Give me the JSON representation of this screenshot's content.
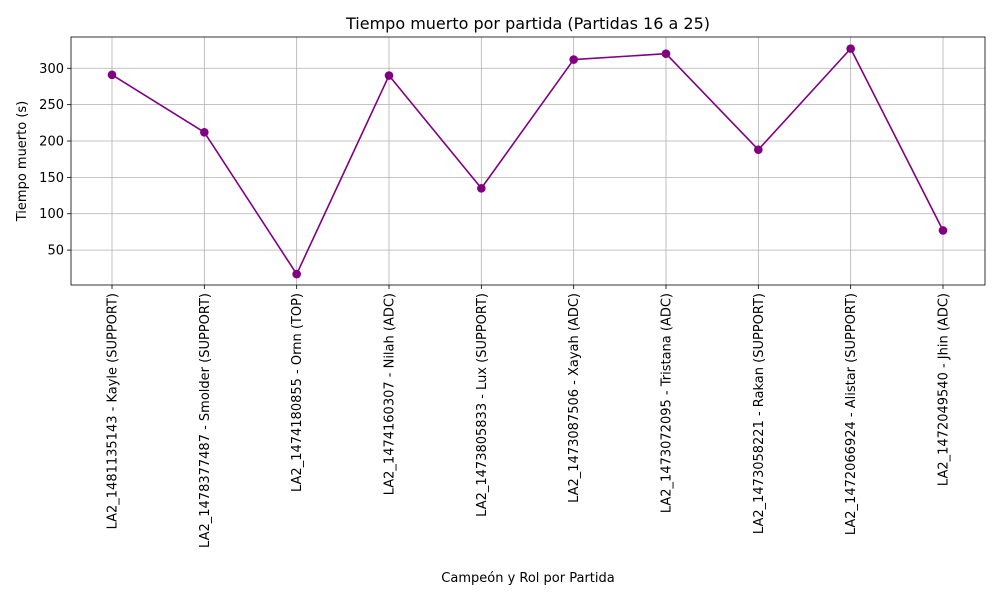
{
  "chart_data": {
    "type": "line",
    "title": "Tiempo muerto por partida (Partidas 16 a 25)",
    "xlabel": "Campeón y Rol por Partida",
    "ylabel": "Tiempo muerto (s)",
    "categories": [
      "LA2_1481135143 - Kayle (SUPPORT)",
      "LA2_1478377487 - Smolder (SUPPORT)",
      "LA2_1474180855 - Ornn (TOP)",
      "LA2_1474160307 - Nilah (ADC)",
      "LA2_1473805833 - Lux (SUPPORT)",
      "LA2_1473087506 - Xayah (ADC)",
      "LA2_1473072095 - Tristana (ADC)",
      "LA2_1473058221 - Rakan (SUPPORT)",
      "LA2_1472066924 - Alistar (SUPPORT)",
      "LA2_1472049540 - Jhin (ADC)"
    ],
    "series": [
      {
        "values": [
          291,
          212,
          17,
          290,
          135,
          312,
          320,
          188,
          327,
          77
        ],
        "color": "#800080",
        "marker": "circle"
      }
    ],
    "yticks": [
      50,
      100,
      150,
      200,
      250,
      300
    ],
    "ylim": [
      2,
      343
    ],
    "grid": true,
    "legend": "none"
  }
}
